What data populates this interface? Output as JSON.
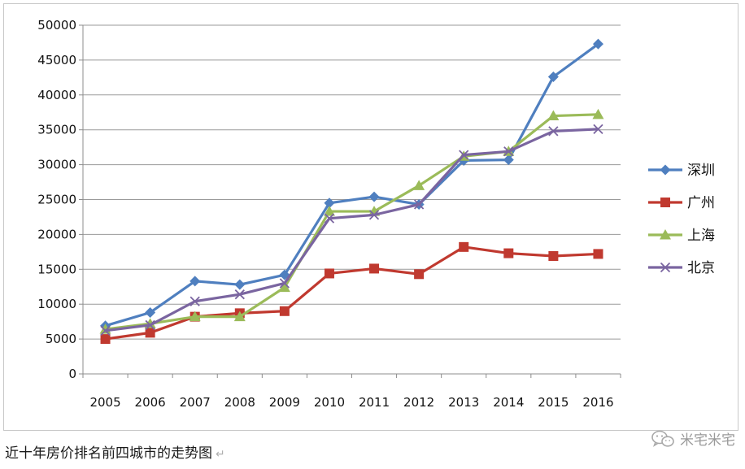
{
  "caption": {
    "text": "近十年房价排名前四城市的走势图",
    "mark": "↵"
  },
  "watermark": {
    "text": "米宅米宅",
    "icon": "wechat-icon"
  },
  "chart_data": {
    "type": "line",
    "categories": [
      "2005",
      "2006",
      "2007",
      "2008",
      "2009",
      "2010",
      "2011",
      "2012",
      "2013",
      "2014",
      "2015",
      "2016"
    ],
    "ylim": [
      0,
      50000
    ],
    "yticks": [
      0,
      5000,
      10000,
      15000,
      20000,
      25000,
      30000,
      35000,
      40000,
      45000,
      50000
    ],
    "grid": "horizontal",
    "legend_position": "right",
    "title": "",
    "xlabel": "",
    "ylabel": "",
    "series": [
      {
        "name": "深圳",
        "color": "#4f7fbf",
        "marker": "diamond",
        "values": [
          6900,
          8800,
          13300,
          12800,
          14200,
          24500,
          25400,
          24300,
          30600,
          30700,
          42600,
          47300
        ]
      },
      {
        "name": "广州",
        "color": "#c0392f",
        "marker": "square",
        "values": [
          5000,
          5900,
          8200,
          8700,
          9000,
          14400,
          15100,
          14300,
          18200,
          17300,
          16900,
          17200
        ]
      },
      {
        "name": "上海",
        "color": "#9bbb59",
        "marker": "triangle",
        "values": [
          6400,
          7200,
          8200,
          8200,
          12400,
          23300,
          23300,
          27000,
          31200,
          31900,
          37000,
          37200
        ]
      },
      {
        "name": "北京",
        "color": "#7a65a0",
        "marker": "x",
        "values": [
          6200,
          7000,
          10400,
          11400,
          13000,
          22300,
          22800,
          24300,
          31400,
          31900,
          34800,
          35100
        ]
      }
    ]
  }
}
